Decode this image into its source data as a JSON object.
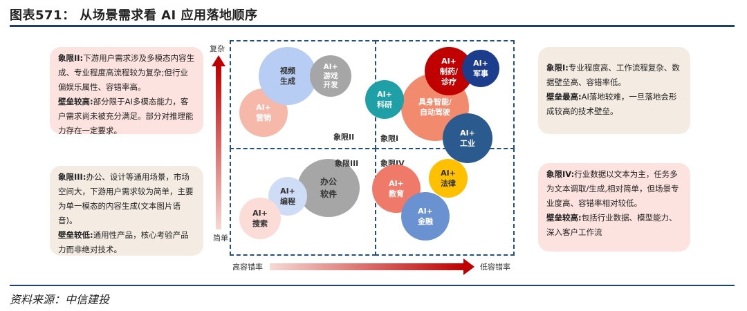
{
  "header": {
    "title": "图表571：  从场景需求看 AI 应用落地顺序"
  },
  "footer": {
    "source": "资料来源：中信建投"
  },
  "axes": {
    "y_top": "复杂",
    "y_bottom": "简单",
    "x_left": "高容错率",
    "x_right": "低容错率"
  },
  "quadrants": {
    "q1": "象限I",
    "q2": "象限II",
    "q3": "象限III",
    "q4": "象限IV"
  },
  "notes": {
    "q2": {
      "head": "象限II:",
      "text": "下游用户需求涉及多模态内容生成、专业程度高流程较为复杂;但行业偏娱乐属性、容错率高。",
      "head2": "壁垒较高:",
      "text2": "部分限于AI多模态能力，客户需求尚未被充分满足。部分对推理能力存在一定要求。"
    },
    "q3": {
      "head": "象限III:",
      "text": "办公、设计等通用场景，市场空间大，下游用户需求较为简单，主要为单一模态的内容生成(文本图片语音)。",
      "head2": "壁垒较低:",
      "text2": "通用性产品，核心考验产品力而非绝对技术。"
    },
    "q1": {
      "head": "象限I:",
      "text": "专业程度高、工作流程复杂、数据壁垒高、容错率低。",
      "head2": "壁垒最高:",
      "text2": "AI落地较难，一旦落地会形成较高的技术壁垒。"
    },
    "q4": {
      "head": "象限IV:",
      "text": "行业数据以文本为主，任务多为文本调取/生成,相对简单，但场景专业度高、容错率相对较低。",
      "head2": "壁垒较高:",
      "text2": "包括行业数据、模型能力、深入客户工作流"
    }
  },
  "bubbles": [
    {
      "id": "video",
      "line1": "视频",
      "line2": "生成"
    },
    {
      "id": "game",
      "line1": "AI+",
      "line2": "游戏",
      "line3": "开发"
    },
    {
      "id": "marketing",
      "line1": "AI+",
      "line2": "营销"
    },
    {
      "id": "pharma",
      "line1": "AI+",
      "line2": "制药/",
      "line3": "诊疗"
    },
    {
      "id": "military",
      "line1": "AI+",
      "line2": "军事"
    },
    {
      "id": "research",
      "line1": "AI+",
      "line2": "科研"
    },
    {
      "id": "embodied",
      "line1": "具身智能/",
      "line2": "自动驾驶"
    },
    {
      "id": "industry",
      "line1": "AI+",
      "line2": "工业"
    },
    {
      "id": "office",
      "line1": "办公",
      "line2": "软件"
    },
    {
      "id": "coding",
      "line1": "AI+",
      "line2": "编程"
    },
    {
      "id": "search",
      "line1": "AI+",
      "line2": "搜索"
    },
    {
      "id": "education",
      "line1": "AI+",
      "line2": "教育"
    },
    {
      "id": "law",
      "line1": "AI+",
      "line2": "法律"
    },
    {
      "id": "finance",
      "line1": "AI+",
      "line2": "金融"
    }
  ],
  "colors": {
    "navy": "#1f3f6e",
    "red": "#c00000",
    "pink_box": "#fde3df",
    "beige_box": "#f4ece2"
  }
}
